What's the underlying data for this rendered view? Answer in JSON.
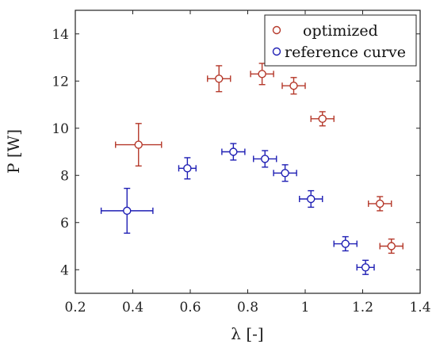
{
  "chart_data": {
    "type": "scatter",
    "xlabel": "λ [-]",
    "ylabel": "P [W]",
    "xlim": [
      0.2,
      1.4
    ],
    "ylim": [
      3.0,
      15.0
    ],
    "xticks": [
      0.2,
      0.4,
      0.6,
      0.8,
      1.0,
      1.2,
      1.4
    ],
    "xtick_labels": [
      "0.2",
      "0.4",
      "0.6",
      "0.8",
      "1",
      "1.2",
      "1.4"
    ],
    "yticks": [
      4,
      6,
      8,
      10,
      12,
      14
    ],
    "ytick_labels": [
      "4",
      "6",
      "8",
      "10",
      "12",
      "14"
    ],
    "grid": false,
    "legend_position": "top-right",
    "series": [
      {
        "name": "optimized",
        "color": "#b5382a",
        "marker": "open-circle",
        "points": [
          {
            "x": 0.42,
            "y": 9.3,
            "xerr": 0.08,
            "yerr": 0.9
          },
          {
            "x": 0.7,
            "y": 12.1,
            "xerr": 0.04,
            "yerr": 0.55
          },
          {
            "x": 0.85,
            "y": 12.3,
            "xerr": 0.04,
            "yerr": 0.45
          },
          {
            "x": 0.96,
            "y": 11.8,
            "xerr": 0.04,
            "yerr": 0.35
          },
          {
            "x": 1.06,
            "y": 10.4,
            "xerr": 0.04,
            "yerr": 0.3
          },
          {
            "x": 1.26,
            "y": 6.8,
            "xerr": 0.04,
            "yerr": 0.3
          },
          {
            "x": 1.3,
            "y": 5.0,
            "xerr": 0.04,
            "yerr": 0.3
          }
        ]
      },
      {
        "name": "reference curve",
        "color": "#1f1fb4",
        "marker": "open-circle",
        "points": [
          {
            "x": 0.38,
            "y": 6.5,
            "xerr": 0.09,
            "yerr": 0.95
          },
          {
            "x": 0.59,
            "y": 8.3,
            "xerr": 0.03,
            "yerr": 0.45
          },
          {
            "x": 0.75,
            "y": 9.0,
            "xerr": 0.04,
            "yerr": 0.35
          },
          {
            "x": 0.86,
            "y": 8.7,
            "xerr": 0.04,
            "yerr": 0.35
          },
          {
            "x": 0.93,
            "y": 8.1,
            "xerr": 0.04,
            "yerr": 0.35
          },
          {
            "x": 1.02,
            "y": 7.0,
            "xerr": 0.04,
            "yerr": 0.35
          },
          {
            "x": 1.14,
            "y": 5.1,
            "xerr": 0.04,
            "yerr": 0.3
          },
          {
            "x": 1.21,
            "y": 4.1,
            "xerr": 0.03,
            "yerr": 0.3
          }
        ]
      }
    ]
  }
}
